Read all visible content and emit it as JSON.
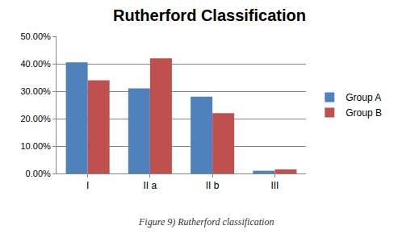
{
  "chart_data": {
    "type": "bar",
    "title": "Rutherford Classification",
    "caption": "Figure 9) Rutherford classification",
    "categories": [
      "I",
      "II a",
      "II b",
      "III"
    ],
    "series": [
      {
        "name": "Group A",
        "color": "#4f81bd",
        "values": [
          40.5,
          31,
          28,
          1
        ]
      },
      {
        "name": "Group B",
        "color": "#c0504d",
        "values": [
          34,
          42,
          22,
          1.5
        ]
      }
    ],
    "ylim": [
      0,
      50
    ],
    "yticks": [
      {
        "value": 0,
        "label": "0.00%"
      },
      {
        "value": 10,
        "label": "10.00%"
      },
      {
        "value": 20,
        "label": "20.00%"
      },
      {
        "value": 30,
        "label": "30.00%"
      },
      {
        "value": 40,
        "label": "40.00%"
      },
      {
        "value": 50,
        "label": "50.00%"
      }
    ],
    "grid": true,
    "legend": "right"
  }
}
